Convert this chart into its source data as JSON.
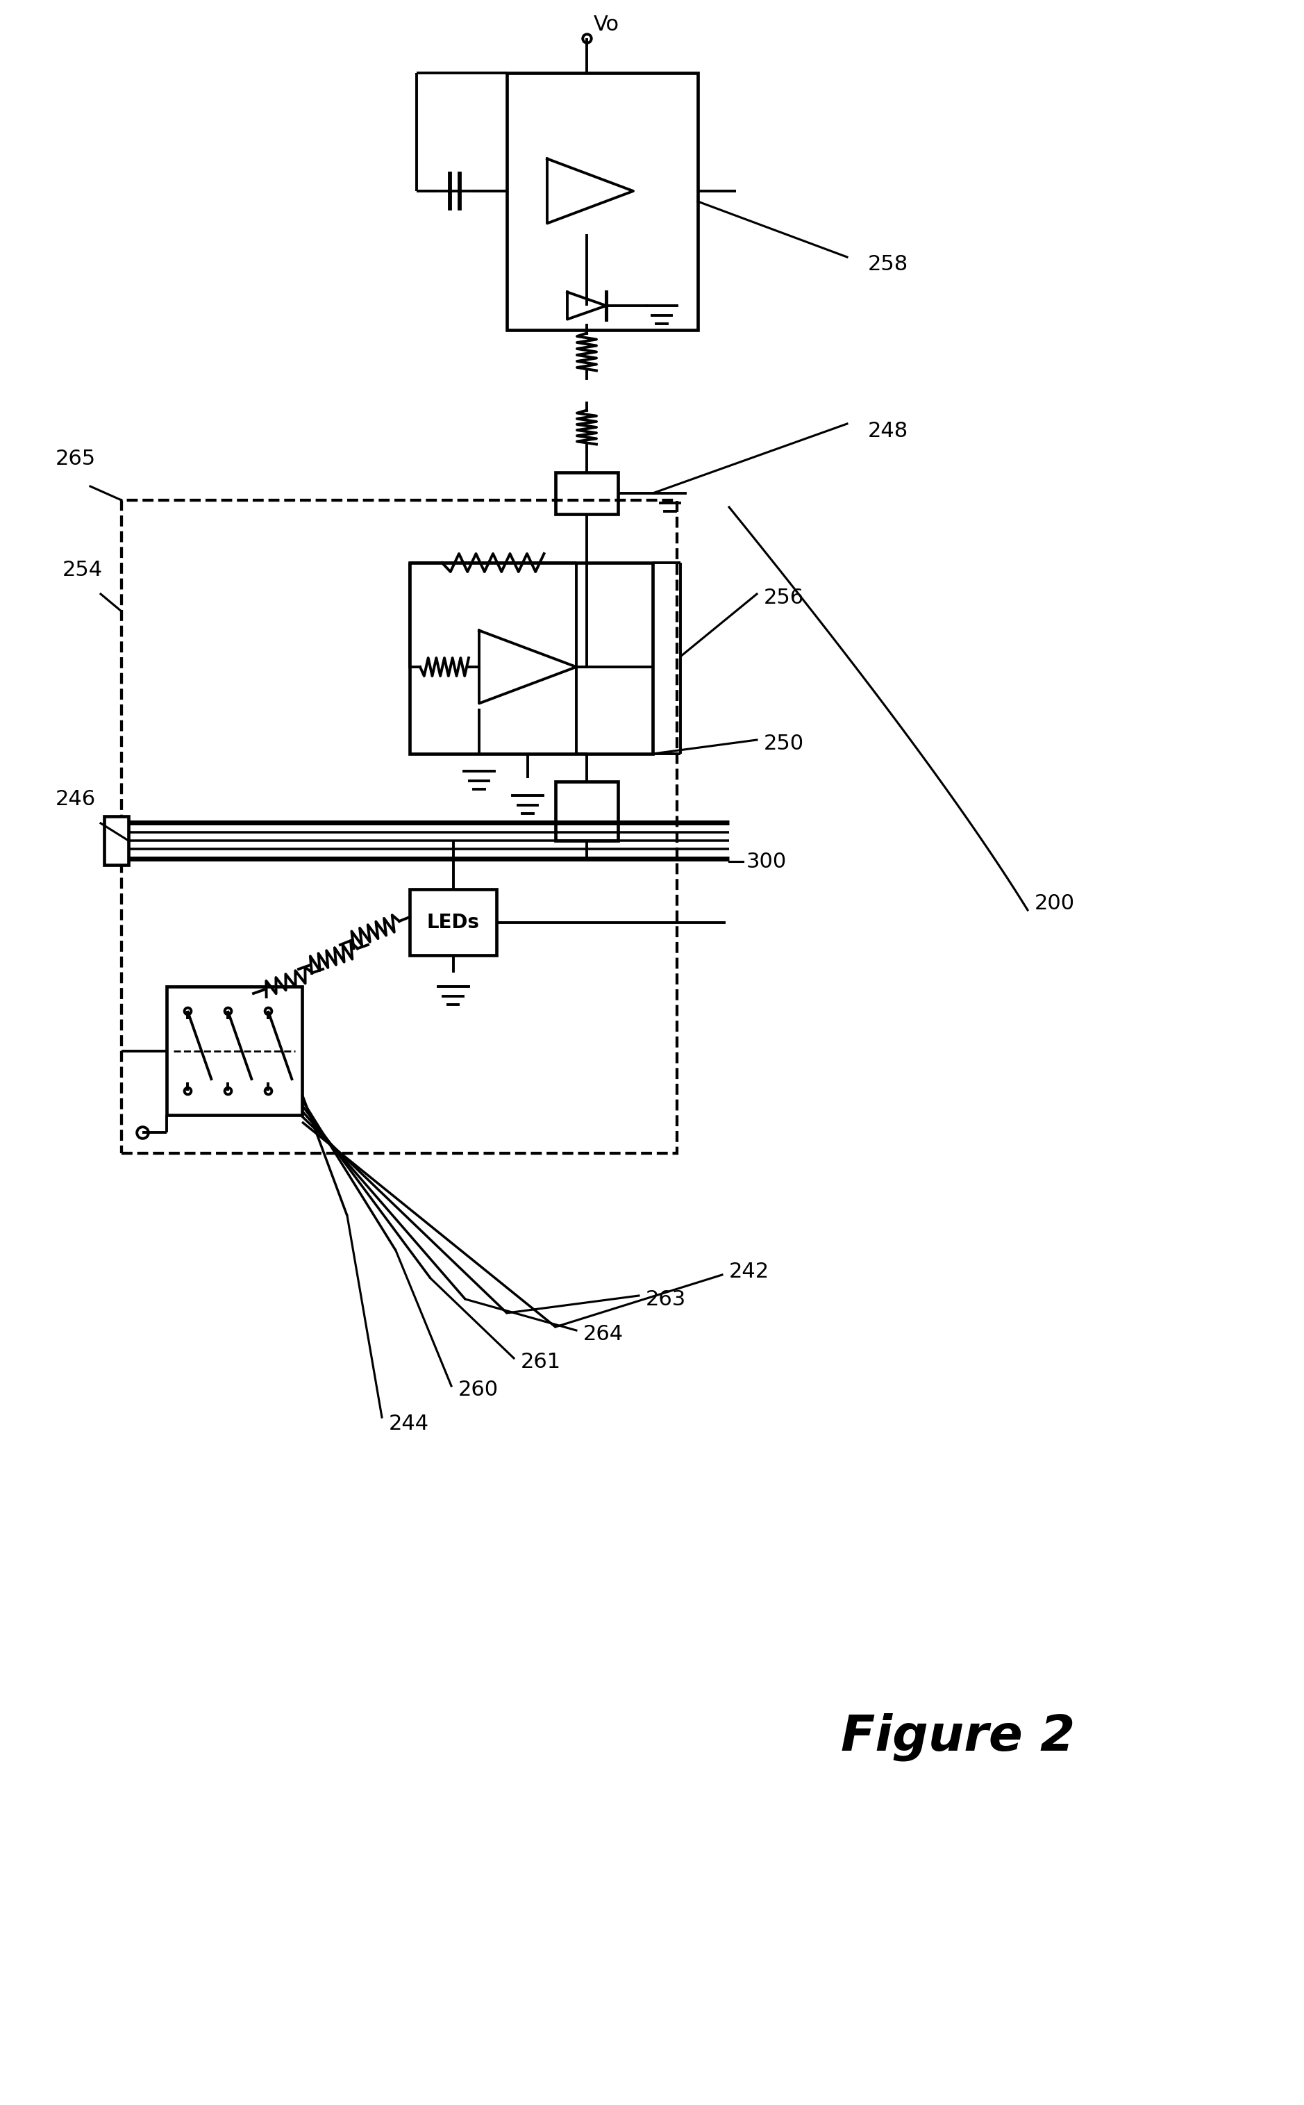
{
  "background_color": "#ffffff",
  "line_color": "#000000",
  "lw": 2.8,
  "figure_title": "Figure 2",
  "figure_label": "200"
}
